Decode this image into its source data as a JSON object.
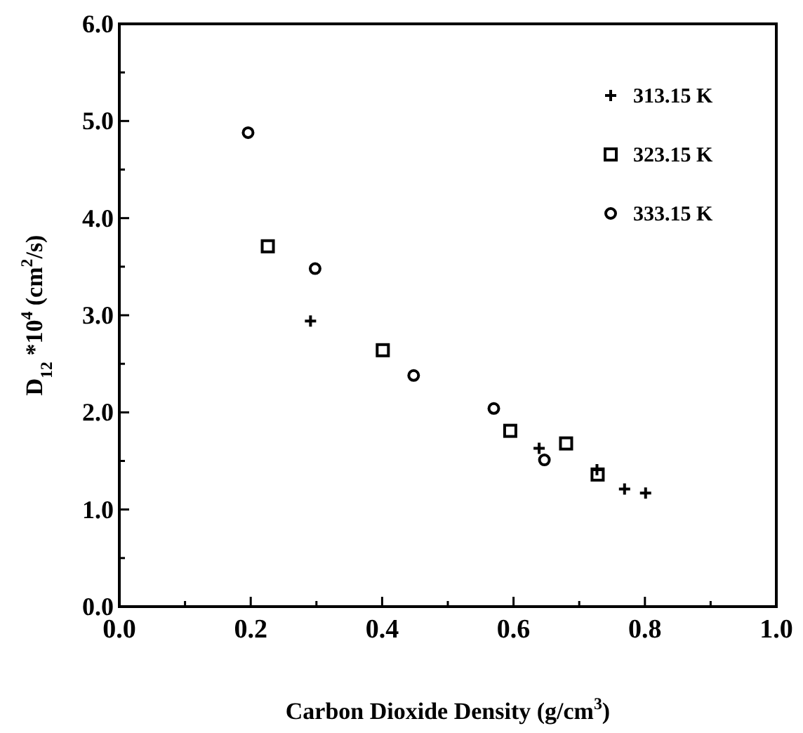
{
  "chart_data": {
    "type": "scatter",
    "xlabel": "Carbon Dioxide Density (g/cm$^{3}$)",
    "ylabel": "D$_{12}$ *10$^{4}$ (cm$^{2}$/s)",
    "xlim": [
      0,
      1
    ],
    "ylim": [
      0,
      6
    ],
    "xticks": [
      {
        "value": 0,
        "label": "0.0"
      },
      {
        "value": 0.1,
        "label": null
      },
      {
        "value": 0.2,
        "label": "0.2"
      },
      {
        "value": 0.3,
        "label": null
      },
      {
        "value": 0.4,
        "label": "0.4"
      },
      {
        "value": 0.5,
        "label": null
      },
      {
        "value": 0.6,
        "label": "0.6"
      },
      {
        "value": 0.7,
        "label": null
      },
      {
        "value": 0.8,
        "label": "0.8"
      },
      {
        "value": 0.9,
        "label": null
      },
      {
        "value": 1,
        "label": "1.0"
      }
    ],
    "yticks": [
      {
        "value": 0,
        "label": "0.0"
      },
      {
        "value": 0.5,
        "label": null
      },
      {
        "value": 1,
        "label": "1.0"
      },
      {
        "value": 1.5,
        "label": null
      },
      {
        "value": 2,
        "label": "2.0"
      },
      {
        "value": 2.5,
        "label": null
      },
      {
        "value": 3,
        "label": "3.0"
      },
      {
        "value": 3.5,
        "label": null
      },
      {
        "value": 4,
        "label": "4.0"
      },
      {
        "value": 4.5,
        "label": null
      },
      {
        "value": 5,
        "label": "5.0"
      },
      {
        "value": 5.5,
        "label": null
      },
      {
        "value": 6,
        "label": "6.0"
      }
    ],
    "grid": false,
    "legend": "top right",
    "series": [
      {
        "name": "313.15 K",
        "color": "#000000",
        "marker": "cross",
        "x": [
          0.291,
          0.639,
          0.727,
          0.769,
          0.801
        ],
        "values": [
          2.94,
          1.63,
          1.41,
          1.21,
          1.17
        ]
      },
      {
        "name": "323.15 K",
        "color": "#000000",
        "marker": "square",
        "x": [
          0.226,
          0.401,
          0.595,
          0.68,
          0.728
        ],
        "values": [
          3.71,
          2.64,
          1.81,
          1.68,
          1.36
        ]
      },
      {
        "name": "333.15 K",
        "color": "#000000",
        "marker": "circle",
        "x": [
          0.196,
          0.298,
          0.448,
          0.57,
          0.647
        ],
        "values": [
          4.88,
          3.48,
          2.38,
          2.04,
          1.51
        ]
      }
    ]
  }
}
